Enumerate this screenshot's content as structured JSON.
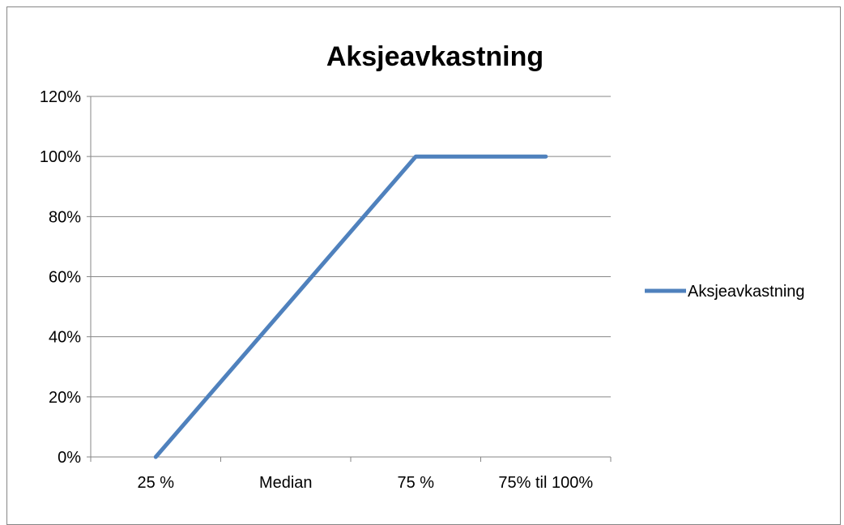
{
  "chart_data": {
    "type": "line",
    "title": "Aksjeavkastning",
    "xlabel": "",
    "ylabel": "",
    "categories": [
      "25 %",
      "Median",
      "75 %",
      "75% til 100%"
    ],
    "series": [
      {
        "name": "Aksjeavkastning",
        "values": [
          0,
          0.5,
          1.0,
          1.0
        ],
        "color": "#4f81bd"
      }
    ],
    "ylim": [
      0,
      1.2
    ],
    "yticks": [
      0,
      0.2,
      0.4,
      0.6,
      0.8,
      1.0,
      1.2
    ],
    "ytick_labels": [
      "0%",
      "20%",
      "40%",
      "60%",
      "80%",
      "100%",
      "120%"
    ],
    "grid": true,
    "gridline_color": "#868686",
    "legend_position": "right"
  }
}
